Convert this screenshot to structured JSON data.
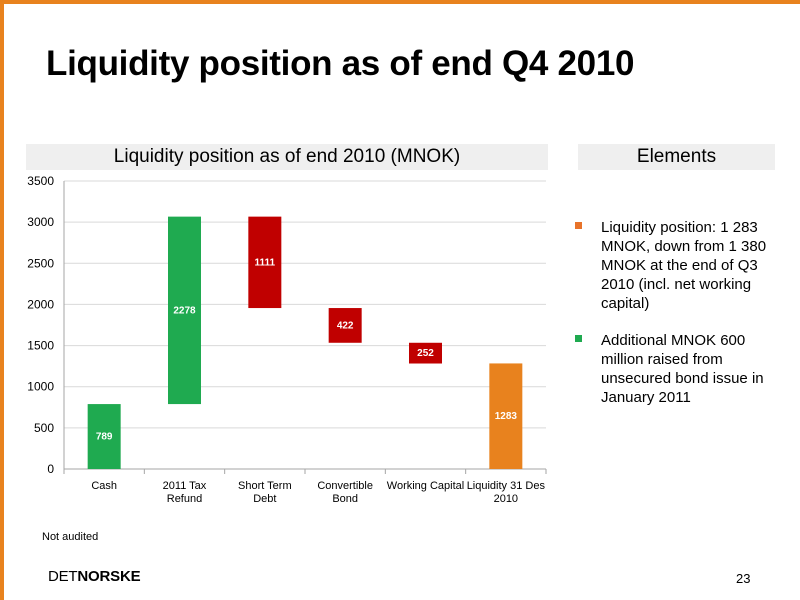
{
  "slide_title": "Liquidity position as of end Q4 2010",
  "elements_header": "Elements",
  "bullets": [
    {
      "text": "Liquidity position: 1 283 MNOK, down from 1 380 MNOK at the end of Q3 2010 (incl. net working capital)",
      "color": "#e8732a"
    },
    {
      "text": "Additional MNOK 600 million raised from unsecured bond issue in January 2011",
      "color": "#1faa50"
    }
  ],
  "note": "Not audited",
  "logo": {
    "part1": "DET",
    "part2": "NORSKE"
  },
  "page_number": "23",
  "chart_data": {
    "type": "bar",
    "title": "Liquidity position as of end 2010 (MNOK)",
    "categories": [
      "Cash",
      "2011 Tax Refund",
      "Short Term Debt",
      "Convertible Bond",
      "Working Capital",
      "Liquidity 31 Des 2010"
    ],
    "category_lines": [
      [
        "Cash"
      ],
      [
        "2011 Tax",
        "Refund"
      ],
      [
        "Short Term",
        "Debt"
      ],
      [
        "Convertible",
        "Bond"
      ],
      [
        "Working Capital"
      ],
      [
        "Liquidity 31 Des",
        "2010"
      ]
    ],
    "bars": [
      {
        "low": 0,
        "high": 789,
        "label": "789",
        "color": "#1faa50"
      },
      {
        "low": 789,
        "high": 3067,
        "label": "2278",
        "color": "#1faa50"
      },
      {
        "low": 1956,
        "high": 3067,
        "label": "1111",
        "color": "#c00000"
      },
      {
        "low": 1534,
        "high": 1956,
        "label": "422",
        "color": "#c00000"
      },
      {
        "low": 1282,
        "high": 1534,
        "label": "252",
        "color": "#c00000"
      },
      {
        "low": 0,
        "high": 1283,
        "label": "1283",
        "color": "#e8821e"
      }
    ],
    "ylim": [
      0,
      3500
    ],
    "yticks": [
      0,
      500,
      1000,
      1500,
      2000,
      2500,
      3000,
      3500
    ],
    "grid": true
  }
}
